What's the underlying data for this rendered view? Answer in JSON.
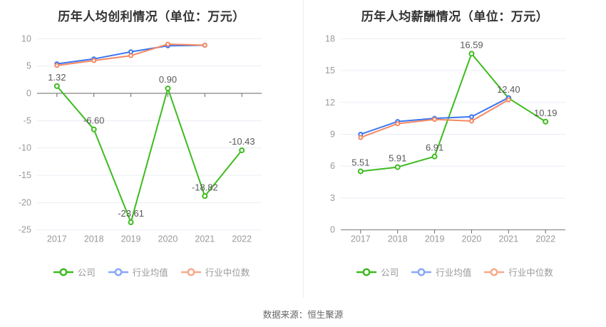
{
  "page": {
    "source_note": "数据来源：恒生聚源",
    "background": "#ffffff",
    "divider_color": "#ededed"
  },
  "colors": {
    "grid_line": "#e9edf5",
    "axis_line": "#666666",
    "tick_label": "#999999",
    "data_label": "#595959",
    "title": "#333333",
    "legend_text": "#999999",
    "marker_fill": "#ffffff"
  },
  "legend": {
    "items": [
      {
        "key": "company",
        "label": "公司",
        "color": "#3dbb1f"
      },
      {
        "key": "industry-average",
        "label": "行业均值",
        "color": "#87a7f7"
      },
      {
        "key": "industry-median",
        "label": "行业中位数",
        "color": "#f8a98b"
      }
    ]
  },
  "chart_data": [
    {
      "type": "line",
      "title": "历年人均创利情况（单位：万元）",
      "categories": [
        "2017",
        "2018",
        "2019",
        "2020",
        "2021",
        "2022"
      ],
      "ylim": [
        -25,
        10
      ],
      "ytick_step": 5,
      "grid": true,
      "legend_position": "bottom",
      "series": [
        {
          "name": "公司",
          "color": "#3dbb1f",
          "values": [
            1.32,
            -6.6,
            -23.61,
            0.9,
            -18.82,
            -10.43
          ],
          "labels": [
            "1.32",
            "-6.60",
            "-23.61",
            "0.90",
            "-18.82",
            "-10.43"
          ]
        },
        {
          "name": "行业均值",
          "color": "#3b76f0",
          "values": [
            5.4,
            6.3,
            7.6,
            8.7,
            8.8
          ]
        },
        {
          "name": "行业中位数",
          "color": "#f58862",
          "values": [
            5.1,
            6.0,
            6.9,
            9.0,
            8.8
          ]
        }
      ]
    },
    {
      "type": "line",
      "title": "历年人均薪酬情况（单位：万元）",
      "categories": [
        "2017",
        "2018",
        "2019",
        "2020",
        "2021",
        "2022"
      ],
      "ylim": [
        0,
        18
      ],
      "ytick_step": 3,
      "grid": true,
      "legend_position": "bottom",
      "series": [
        {
          "name": "公司",
          "color": "#3dbb1f",
          "values": [
            5.51,
            5.91,
            6.91,
            16.59,
            12.4,
            10.19
          ],
          "labels": [
            "5.51",
            "5.91",
            "6.91",
            "16.59",
            "12.40",
            "10.19"
          ]
        },
        {
          "name": "行业均值",
          "color": "#3b76f0",
          "values": [
            9.0,
            10.2,
            10.5,
            10.65,
            12.45
          ]
        },
        {
          "name": "行业中位数",
          "color": "#f58862",
          "values": [
            8.7,
            10.0,
            10.4,
            10.25,
            12.25
          ]
        }
      ]
    }
  ]
}
